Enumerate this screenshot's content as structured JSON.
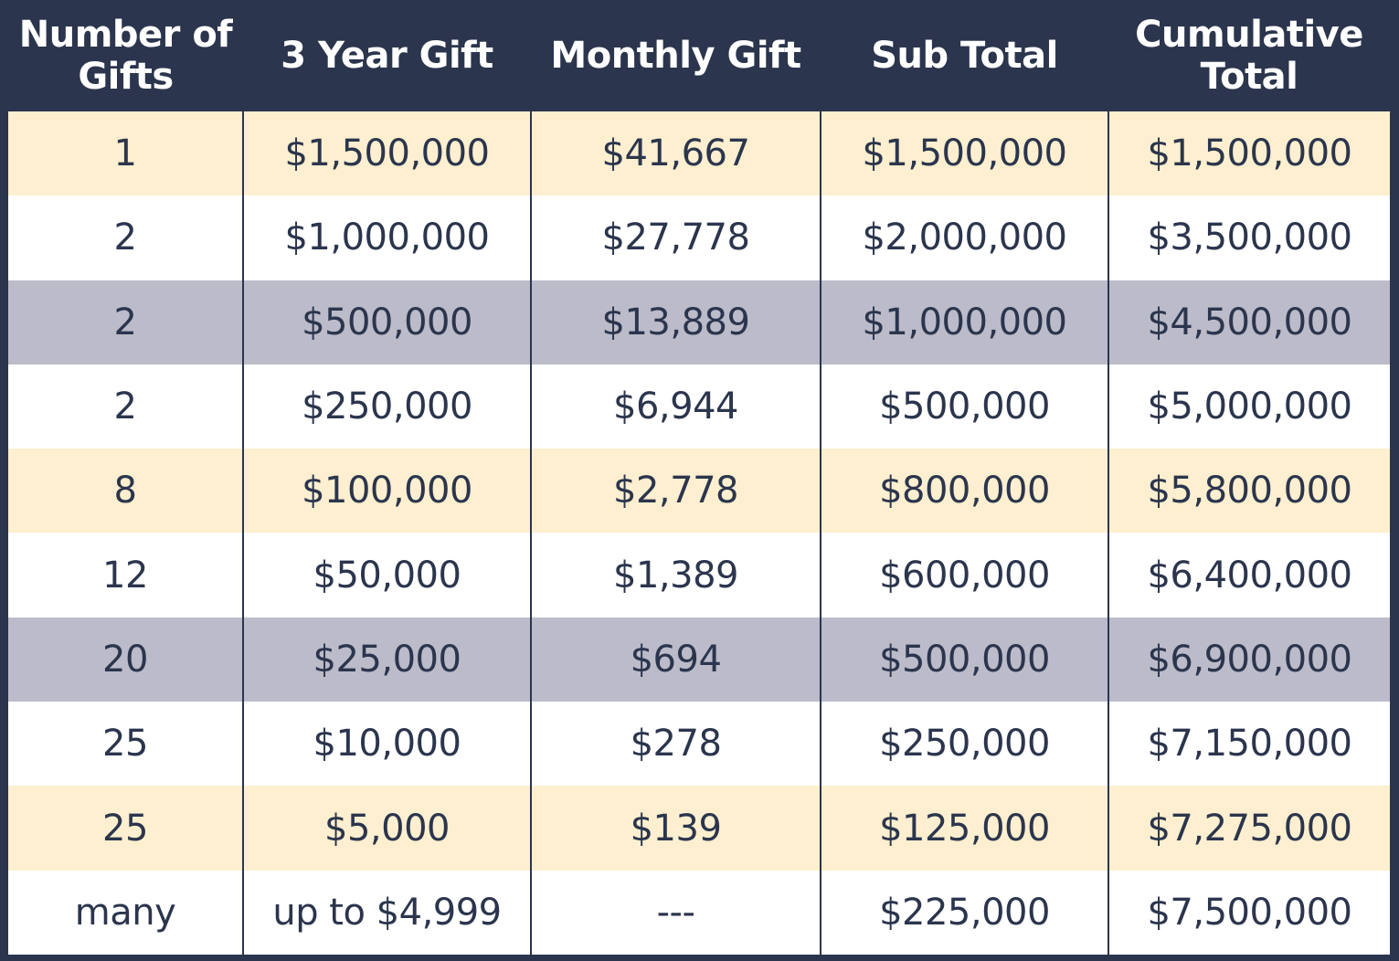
{
  "table": {
    "headers": [
      "Number of Gifts",
      "3 Year Gift",
      "Monthly Gift",
      "Sub Total",
      "Cumulative Total"
    ],
    "rows": [
      {
        "style": "cream",
        "cells": [
          "1",
          "$1,500,000",
          "$41,667",
          "$1,500,000",
          "$1,500,000"
        ]
      },
      {
        "style": "white",
        "cells": [
          "2",
          "$1,000,000",
          "$27,778",
          "$2,000,000",
          "$3,500,000"
        ]
      },
      {
        "style": "gray",
        "cells": [
          "2",
          "$500,000",
          "$13,889",
          "$1,000,000",
          "$4,500,000"
        ]
      },
      {
        "style": "white",
        "cells": [
          "2",
          "$250,000",
          "$6,944",
          "$500,000",
          "$5,000,000"
        ]
      },
      {
        "style": "cream",
        "cells": [
          "8",
          "$100,000",
          "$2,778",
          "$800,000",
          "$5,800,000"
        ]
      },
      {
        "style": "white",
        "cells": [
          "12",
          "$50,000",
          "$1,389",
          "$600,000",
          "$6,400,000"
        ]
      },
      {
        "style": "gray",
        "cells": [
          "20",
          "$25,000",
          "$694",
          "$500,000",
          "$6,900,000"
        ]
      },
      {
        "style": "white",
        "cells": [
          "25",
          "$10,000",
          "$278",
          "$250,000",
          "$7,150,000"
        ]
      },
      {
        "style": "cream",
        "cells": [
          "25",
          "$5,000",
          "$139",
          "$125,000",
          "$7,275,000"
        ]
      },
      {
        "style": "white",
        "cells": [
          "many",
          "up to $4,999",
          "---",
          "$225,000",
          "$7,500,000"
        ]
      }
    ]
  },
  "colors": {
    "header_bg": "#2b354d",
    "header_text": "#ffffff",
    "row_cream": "#fdefcf",
    "row_white": "#ffffff",
    "row_gray": "#bbbbc9",
    "cell_text": "#2b354d"
  }
}
